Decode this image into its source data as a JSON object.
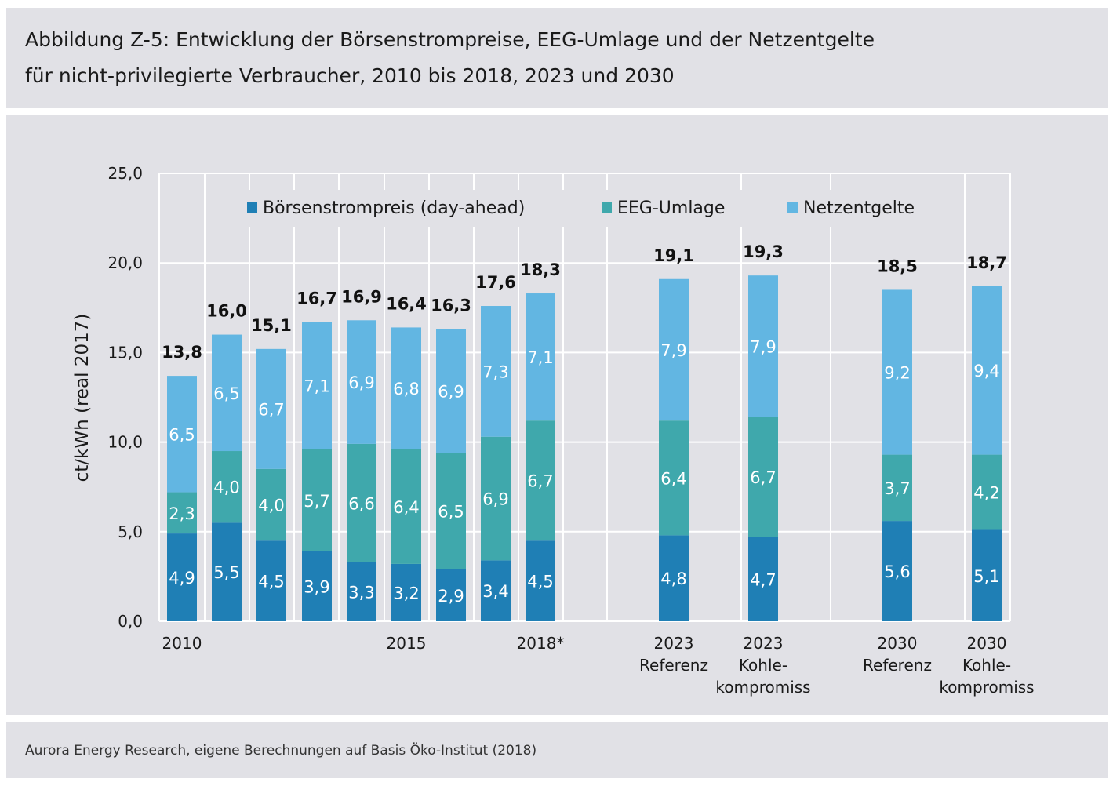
{
  "title": {
    "line1": "Abbildung Z-5: Entwicklung der Börsenstrompreise, EEG-Umlage und der Netzentgelte",
    "line2": "für nicht-privilegierte Verbraucher, 2010 bis 2018, 2023 und 2030"
  },
  "source": "Aurora Energy Research, eigene Berechnungen auf Basis Öko-Institut (2018)",
  "colors": {
    "panel_bg": "#e1e1e6",
    "boersenstrompreis": "#1f7fb5",
    "eeg_umlage": "#3fa8ac",
    "netzentgelte": "#62b6e2",
    "grid": "#ffffff",
    "text": "#1a1a1a"
  },
  "chart_data": {
    "type": "bar",
    "stacked": true,
    "ylabel": "ct/kWh (real 2017)",
    "ylim": [
      0,
      25
    ],
    "yticks": [
      "0,0",
      "5,0",
      "10,0",
      "15,0",
      "20,0",
      "25,0"
    ],
    "grid": true,
    "legend_position": "top",
    "categories": [
      [
        "2010"
      ],
      [
        ""
      ],
      [
        ""
      ],
      [
        ""
      ],
      [
        ""
      ],
      [
        "2015"
      ],
      [
        ""
      ],
      [
        ""
      ],
      [
        "2018*"
      ],
      [
        "2023",
        "Referenz"
      ],
      [
        "2023",
        "Kohle-",
        "kompromiss"
      ],
      [
        "2030",
        "Referenz"
      ],
      [
        "2030",
        "Kohle-",
        "kompromiss"
      ]
    ],
    "series": [
      {
        "name": "Börsenstrompreis (day-ahead)",
        "color": "#1f7fb5",
        "values": [
          4.9,
          5.5,
          4.5,
          3.9,
          3.3,
          3.2,
          2.9,
          3.4,
          4.5,
          4.8,
          4.7,
          5.6,
          5.1
        ],
        "labels": [
          "4,9",
          "5,5",
          "4,5",
          "3,9",
          "3,3",
          "3,2",
          "2,9",
          "3,4",
          "4,5",
          "4,8",
          "4,7",
          "5,6",
          "5,1"
        ]
      },
      {
        "name": "EEG-Umlage",
        "color": "#3fa8ac",
        "values": [
          2.3,
          4.0,
          4.0,
          5.7,
          6.6,
          6.4,
          6.5,
          6.9,
          6.7,
          6.4,
          6.7,
          3.7,
          4.2
        ],
        "labels": [
          "2,3",
          "4,0",
          "4,0",
          "5,7",
          "6,6",
          "6,4",
          "6,5",
          "6,9",
          "6,7",
          "6,4",
          "6,7",
          "3,7",
          "4,2"
        ]
      },
      {
        "name": "Netzentgelte",
        "color": "#62b6e2",
        "values": [
          6.5,
          6.5,
          6.7,
          7.1,
          6.9,
          6.8,
          6.9,
          7.3,
          7.1,
          7.9,
          7.9,
          9.2,
          9.4
        ],
        "labels": [
          "6,5",
          "6,5",
          "6,7",
          "7,1",
          "6,9",
          "6,8",
          "6,9",
          "7,3",
          "7,1",
          "7,9",
          "7,9",
          "9,2",
          "9,4"
        ]
      }
    ],
    "totals": [
      13.8,
      16.0,
      15.1,
      16.7,
      16.9,
      16.4,
      16.3,
      17.6,
      18.3,
      19.1,
      19.3,
      18.5,
      18.7
    ],
    "total_labels": [
      "13,8",
      "16,0",
      "15,1",
      "16,7",
      "16,9",
      "16,4",
      "16,3",
      "17,6",
      "18,3",
      "19,1",
      "19,3",
      "18,5",
      "18,7"
    ]
  }
}
